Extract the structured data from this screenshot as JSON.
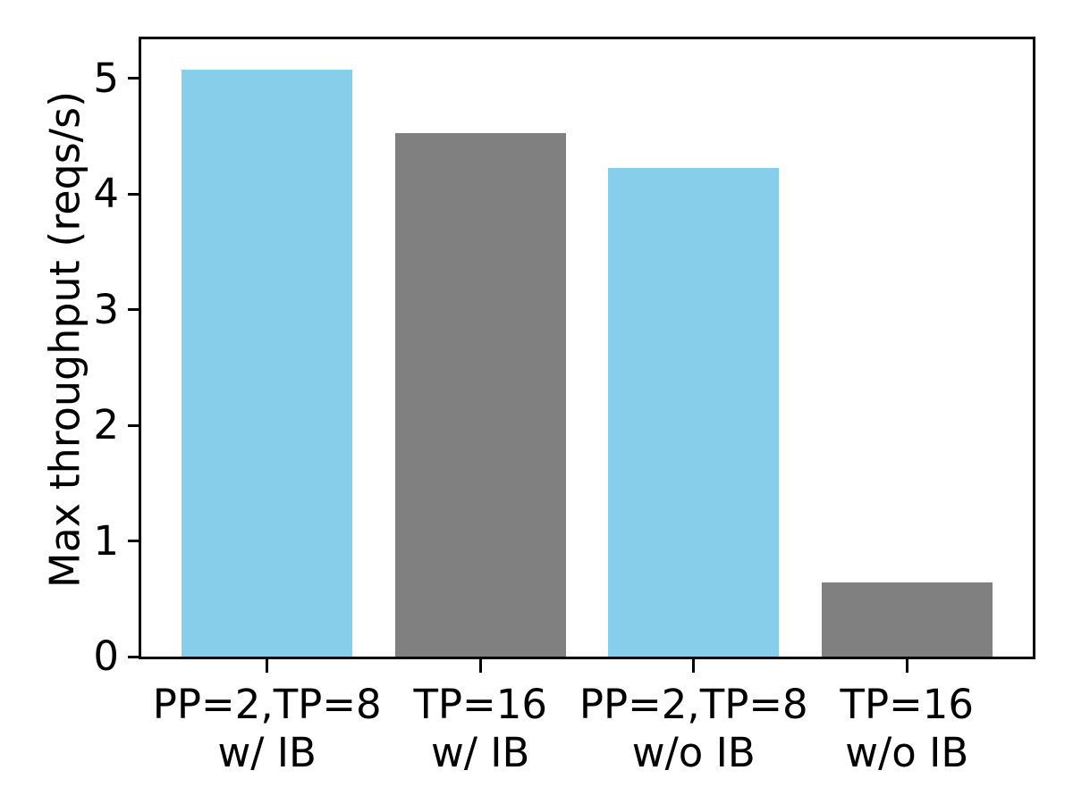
{
  "chart_data": {
    "type": "bar",
    "title": "",
    "xlabel": "",
    "ylabel": "Max throughput (reqs/s)",
    "categories": [
      {
        "line1": "PP=2,TP=8",
        "line2": "w/ IB"
      },
      {
        "line1": "TP=16",
        "line2": "w/ IB"
      },
      {
        "line1": "PP=2,TP=8",
        "line2": "w/o IB"
      },
      {
        "line1": "TP=16",
        "line2": "w/o IB"
      }
    ],
    "values": [
      5.08,
      4.53,
      4.23,
      0.64
    ],
    "bar_colors": [
      "#87ceeb",
      "#808080",
      "#87ceeb",
      "#808080"
    ],
    "yticks": [
      0,
      1,
      2,
      3,
      4,
      5
    ],
    "ylim": [
      0,
      5.34
    ],
    "bar_width_fraction": 0.8,
    "grid": false,
    "legend": false,
    "axis_color": "#000000",
    "background_color": "#ffffff"
  }
}
